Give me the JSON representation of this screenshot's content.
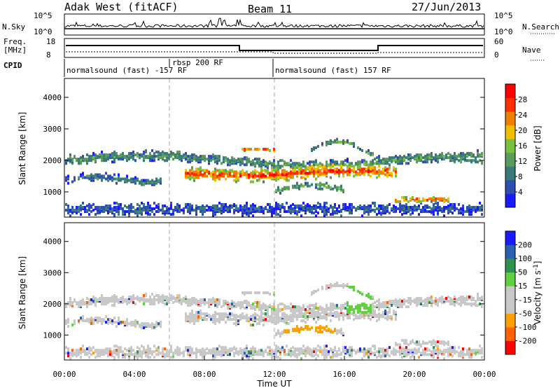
{
  "header": {
    "title": "Adak West (fitACF)",
    "beam": "Beam 11",
    "date": "27/Jun/2013"
  },
  "top_panels": {
    "nsky_label": "N.Sky",
    "nsky_ticks": [
      "10^5",
      "10^0"
    ],
    "nsearch_label": "N.Search",
    "freq_label_1": "Freq.",
    "freq_label_2": "[MHz]",
    "freq_ticks": [
      "18",
      "8"
    ],
    "freq_right_ticks": [
      "60",
      "0"
    ],
    "nave_label": "Nave",
    "cpid_label": "CPID",
    "cpid_segments": [
      {
        "label": "normalsound (fast) -157 RF",
        "start": 0
      },
      {
        "label": "rbsp 200 RF",
        "start": 6
      },
      {
        "label": "normalsound (fast) 157 RF",
        "start": 12
      }
    ]
  },
  "chart_data": [
    {
      "type": "heatmap",
      "name": "power",
      "ylabel": "Slant Range [km]",
      "x_range": [
        0,
        24
      ],
      "ylim": [
        200,
        4600
      ],
      "y_ticks": [
        1000,
        2000,
        3000,
        4000
      ],
      "colorbar": {
        "label": "Power [dB]",
        "ticks": [
          "4",
          "8",
          "12",
          "16",
          "20",
          "24",
          "28"
        ],
        "colors": [
          "#1a1aff",
          "#2e4fb0",
          "#3a7a7a",
          "#5a9a5a",
          "#7ac040",
          "#f0c000",
          "#f08000",
          "#ff3000",
          "#ff0000"
        ]
      }
    },
    {
      "type": "heatmap",
      "name": "velocity",
      "ylabel": "Slant Range [km]",
      "xlabel": "Time UT",
      "x_range": [
        0,
        24
      ],
      "ylim": [
        200,
        4600
      ],
      "y_ticks": [
        1000,
        2000,
        3000,
        4000
      ],
      "x_ticks": [
        "00:00",
        "04:00",
        "08:00",
        "12:00",
        "16:00",
        "20:00",
        "00:00"
      ],
      "colorbar": {
        "label": "Velocity [m s",
        "label_sup": "-1",
        "label_end": "]",
        "ticks": [
          "-200",
          "-100",
          "-50",
          "-15",
          "15",
          "50",
          "100",
          "200"
        ],
        "colors": [
          "#ff0000",
          "#ff6000",
          "#ffa000",
          "#c8c8c8",
          "#c8c8c8",
          "#60d040",
          "#309050",
          "#2a60b0",
          "#1a1aff"
        ]
      }
    }
  ]
}
